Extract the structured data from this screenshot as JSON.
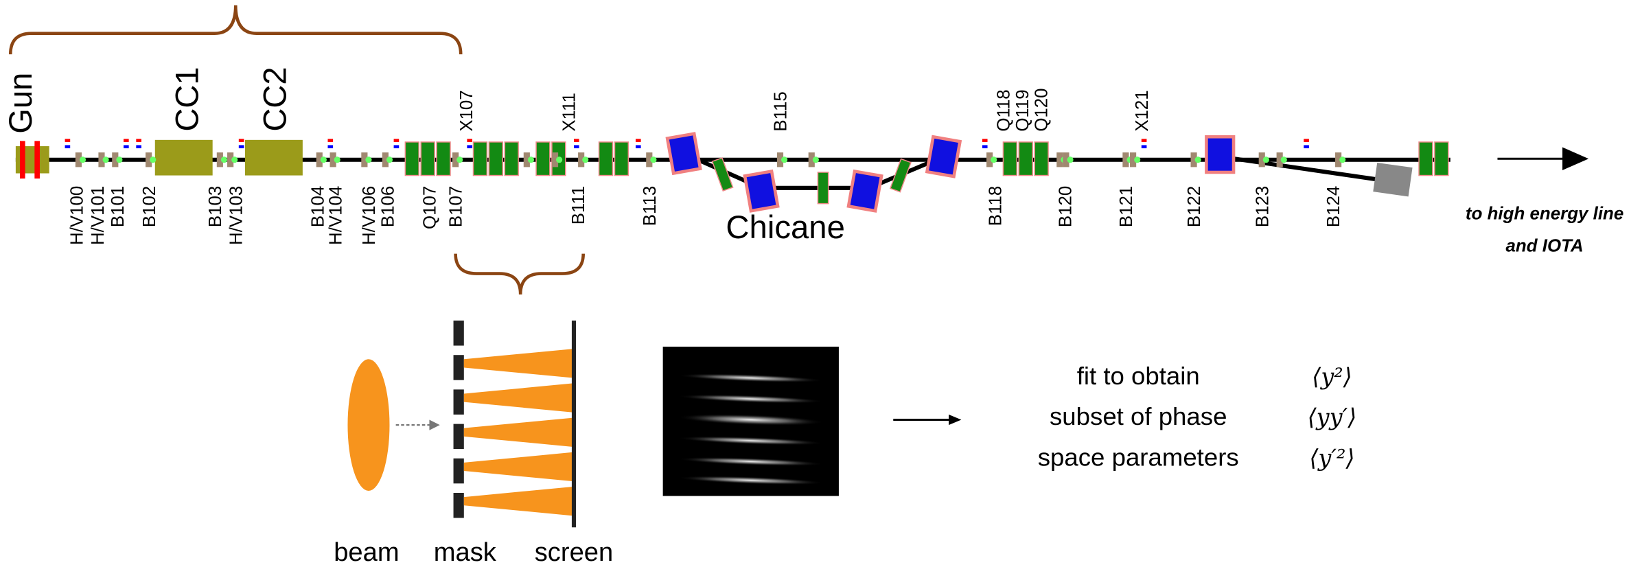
{
  "beamline": {
    "source_label": "Gun",
    "cavity_labels": [
      "CC1",
      "CC2"
    ],
    "labels_above": [
      "X107",
      "X111",
      "B115",
      "Q118",
      "Q119",
      "Q120",
      "X121"
    ],
    "labels_below": [
      "H/V100",
      "H/V101",
      "B101",
      "B102",
      "B103",
      "H/V103",
      "B104",
      "H/V104",
      "H/V106",
      "B106",
      "Q107",
      "B107",
      "B111",
      "B113",
      "B118",
      "B120",
      "B121",
      "B122",
      "B123",
      "B124"
    ],
    "chicane_label": "Chicane",
    "destination": [
      "to high energy line",
      "and IOTA"
    ]
  },
  "measurement": {
    "beam_label": "beam",
    "mask_label": "mask",
    "screen_label": "screen",
    "fit_text": [
      "fit to obtain",
      "subset of phase",
      "space parameters"
    ],
    "parameters": [
      "⟨y²⟩",
      "⟨yy′⟩",
      "⟨y′²⟩"
    ]
  }
}
